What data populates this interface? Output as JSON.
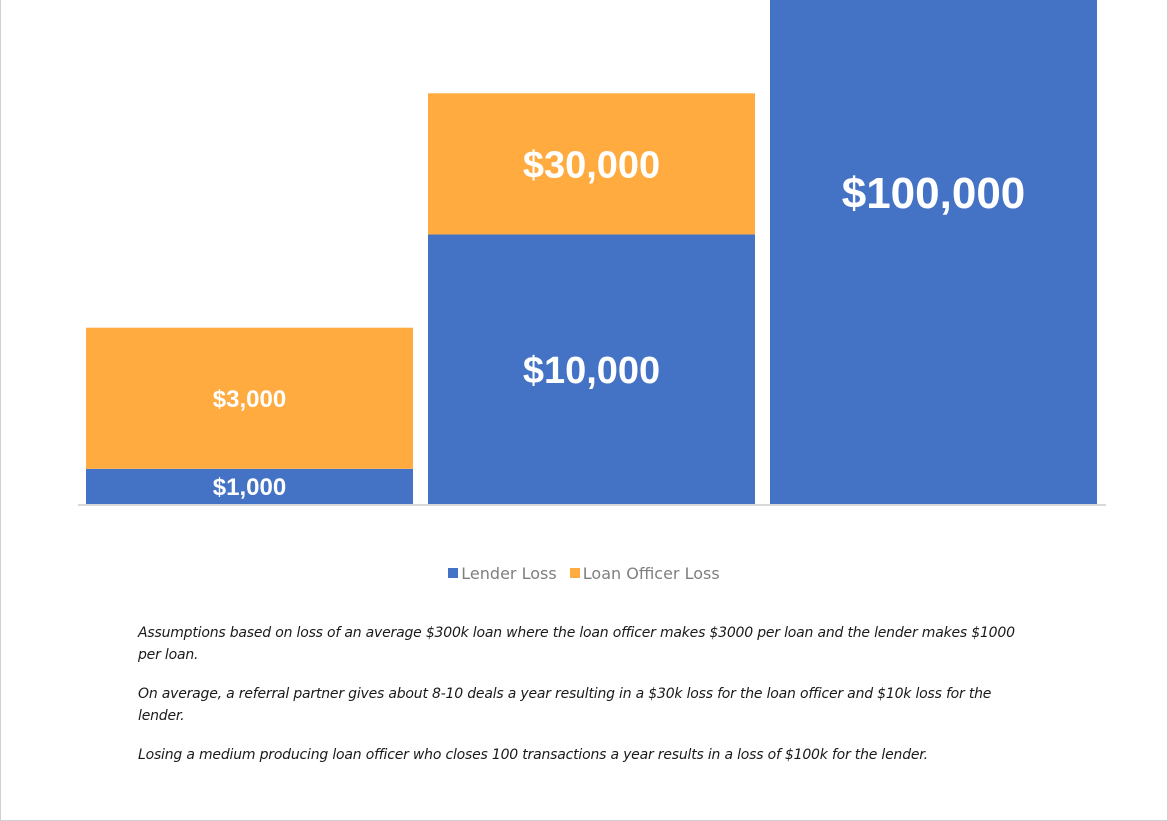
{
  "chart_data": {
    "type": "bar",
    "stacked": true,
    "categories": [
      "",
      "",
      ""
    ],
    "series": [
      {
        "name": "Lender Loss",
        "color": "#4472c4",
        "values": [
          1000,
          10000,
          100000
        ],
        "labels": [
          "$1,000",
          "$10,000",
          "$100,000"
        ]
      },
      {
        "name": "Loan Officer Loss",
        "color": "#ffab40",
        "values": [
          3000,
          30000,
          0
        ],
        "labels": [
          "$3,000",
          "$30,000",
          ""
        ]
      }
    ],
    "title": "",
    "xlabel": "",
    "ylabel": "",
    "ylim": [
      0,
      100000
    ],
    "scale": "log",
    "grid": false,
    "legend": "bottom"
  },
  "legend": {
    "items": [
      {
        "label": "Lender Loss",
        "color": "#4472c4"
      },
      {
        "label": "Loan Officer Loss",
        "color": "#ffab40"
      }
    ]
  },
  "notes": [
    "Assumptions based on loss of an average $300k loan where the loan officer makes $3000 per loan and the lender makes $1000 per loan.",
    "On average, a referral partner gives about 8-10 deals a year resulting in a $30k loss for the loan officer and $10k loss for the lender.",
    "Losing a medium producing loan officer who closes 100 transactions a year results in a loss of $100k for the lender."
  ]
}
